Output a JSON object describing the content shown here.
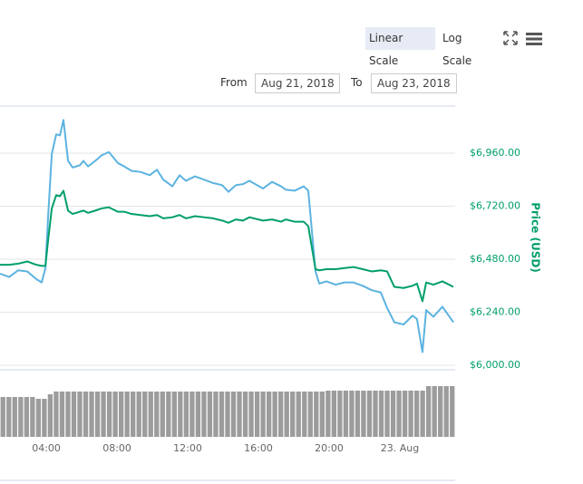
{
  "toolbar": {
    "scale_buttons": [
      "Linear Scale",
      "Log Scale"
    ],
    "from_label": "From",
    "from_value": "Aug 21, 2018",
    "to_label": "To",
    "to_value": "Aug 23, 2018"
  },
  "chart_data": {
    "type": "line",
    "ylabel": "Price (USD)",
    "x": [
      1.38,
      1.9,
      2.41,
      2.92,
      3.44,
      3.74,
      3.95,
      4.1,
      4.31,
      4.56,
      4.77,
      4.97,
      5.23,
      5.49,
      5.9,
      6.1,
      6.36,
      6.77,
      7.13,
      7.54,
      8.05,
      8.41,
      8.82,
      9.33,
      9.85,
      10.26,
      10.62,
      11.13,
      11.54,
      11.9,
      12.41,
      12.92,
      13.44,
      13.95,
      14.31,
      14.72,
      15.13,
      15.49,
      16.26,
      16.77,
      17.28,
      17.54,
      18.05,
      18.56,
      18.82,
      19.23,
      19.44,
      19.85,
      20.36,
      20.87,
      21.38,
      21.9,
      22.41,
      22.92,
      23.28,
      23.69,
      24.21,
      24.72,
      24.97,
      25.28,
      25.49,
      25.9,
      26.41,
      27.03
    ],
    "xlim": [
      1.38,
      27.13
    ],
    "xticks": [
      {
        "value": 4,
        "label": "04:00"
      },
      {
        "value": 8,
        "label": "08:00"
      },
      {
        "value": 12,
        "label": "12:00"
      },
      {
        "value": 16,
        "label": "16:00"
      },
      {
        "value": 20,
        "label": "20:00"
      },
      {
        "value": 24,
        "label": "23. Aug"
      }
    ],
    "ylim": [
      5980,
      7173
    ],
    "yticks": [
      {
        "value": 6000,
        "label": "$6,000.00"
      },
      {
        "value": 6240,
        "label": "$6,240.00"
      },
      {
        "value": 6480,
        "label": "$6,480.00"
      },
      {
        "value": 6720,
        "label": "$6,720.00"
      },
      {
        "value": 6960,
        "label": "$6,960.00"
      }
    ],
    "grid": true,
    "series": [
      {
        "color": "#5cb3e0",
        "values": [
          6415,
          6400,
          6430,
          6425,
          6390,
          6375,
          6440,
          6670,
          6955,
          7045,
          7040,
          7110,
          6925,
          6895,
          6905,
          6925,
          6900,
          6925,
          6950,
          6965,
          6915,
          6900,
          6880,
          6875,
          6860,
          6885,
          6840,
          6810,
          6860,
          6835,
          6855,
          6840,
          6825,
          6815,
          6785,
          6815,
          6820,
          6835,
          6800,
          6830,
          6810,
          6795,
          6790,
          6810,
          6790,
          6425,
          6370,
          6380,
          6365,
          6375,
          6375,
          6360,
          6340,
          6330,
          6260,
          6195,
          6185,
          6225,
          6210,
          6060,
          6250,
          6220,
          6265,
          6195
        ]
      },
      {
        "color": "#009e6b",
        "values": [
          6455,
          6455,
          6460,
          6470,
          6455,
          6450,
          6450,
          6565,
          6710,
          6770,
          6765,
          6790,
          6700,
          6685,
          6695,
          6700,
          6690,
          6700,
          6710,
          6715,
          6695,
          6695,
          6685,
          6680,
          6675,
          6680,
          6665,
          6670,
          6680,
          6665,
          6675,
          6670,
          6665,
          6655,
          6645,
          6660,
          6655,
          6670,
          6655,
          6660,
          6650,
          6660,
          6650,
          6650,
          6630,
          6435,
          6430,
          6435,
          6435,
          6440,
          6445,
          6435,
          6425,
          6430,
          6425,
          6355,
          6350,
          6360,
          6370,
          6290,
          6375,
          6365,
          6380,
          6355
        ]
      }
    ],
    "volume": {
      "color": "#9c9c9c",
      "ylim": [
        0,
        56
      ],
      "values": [
        44,
        44,
        44,
        44,
        44,
        44,
        42,
        42,
        47,
        50,
        50,
        50,
        50,
        50,
        50,
        50,
        50,
        50,
        50,
        50,
        50,
        50,
        50,
        50,
        50,
        50,
        50,
        50,
        50,
        50,
        50,
        50,
        50,
        50,
        50,
        50,
        50,
        50,
        50,
        50,
        50,
        50,
        50,
        50,
        50,
        50,
        50,
        50,
        50,
        50,
        50,
        50,
        50,
        50,
        50,
        51,
        51,
        51,
        51,
        51,
        51,
        51,
        51,
        51,
        51,
        51,
        51,
        51,
        51,
        51,
        51,
        51,
        56,
        56,
        56,
        56,
        56
      ]
    }
  }
}
